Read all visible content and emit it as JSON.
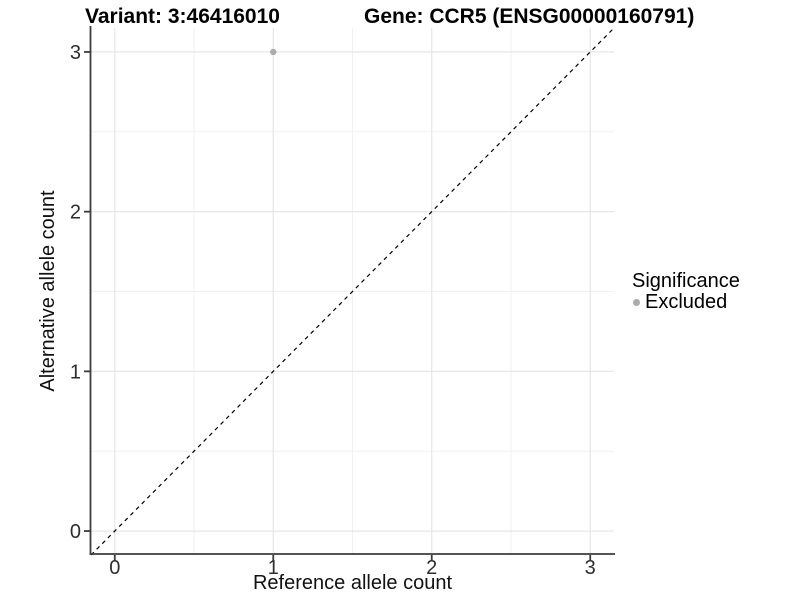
{
  "chart_data": {
    "type": "scatter",
    "titles": {
      "left": "Variant: 3:46416010",
      "right": "Gene: CCR5 (ENSG00000160791)"
    },
    "xlabel": "Reference allele count",
    "ylabel": "Alternative allele count",
    "xlim": [
      -0.15,
      3.15
    ],
    "ylim": [
      -0.15,
      3.15
    ],
    "xticks": [
      0,
      1,
      2,
      3
    ],
    "yticks": [
      0,
      1,
      2,
      3
    ],
    "minor_xticks": [
      0.5,
      1.5,
      2.5
    ],
    "minor_yticks": [
      0.5,
      1.5,
      2.5
    ],
    "grid": "on",
    "series": [
      {
        "name": "Excluded",
        "color": "#ababab",
        "points": [
          {
            "x": 1,
            "y": 3
          }
        ]
      }
    ],
    "reference_line": {
      "kind": "identity y=x",
      "style": "dashed",
      "color": "#000000",
      "from": [
        -0.15,
        -0.15
      ],
      "to": [
        3.15,
        3.15
      ]
    },
    "legend": {
      "title": "Significance",
      "position": "right",
      "entries": [
        {
          "label": "Excluded",
          "color": "#ababab"
        }
      ]
    },
    "colors": {
      "background": "#ffffff",
      "grid_major": "#e4e4e4",
      "grid_minor": "#f1f1f1",
      "axis_line": "#3c3c3c",
      "tick_text": "#2e2e2e",
      "title_text": "#000000"
    }
  }
}
